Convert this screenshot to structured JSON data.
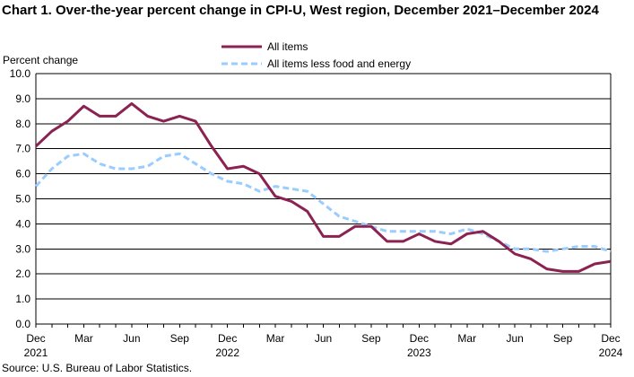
{
  "title": "Chart 1. Over-the-year percent change in CPI-U, West region, December 2021–December 2024",
  "source": "Source: U.S. Bureau of Labor Statistics.",
  "colors": {
    "all_items": "#8B2252",
    "core": "#99CCFF",
    "grid": "#000000",
    "axis": "#000000"
  },
  "chart_data": {
    "type": "line",
    "ylabel": "Percent change",
    "ylim": [
      0,
      10
    ],
    "yticks": [
      "0.0",
      "1.0",
      "2.0",
      "3.0",
      "4.0",
      "5.0",
      "6.0",
      "7.0",
      "8.0",
      "9.0",
      "10.0"
    ],
    "x": [
      "Dec 2021",
      "Jan 2022",
      "Feb 2022",
      "Mar 2022",
      "Apr 2022",
      "May 2022",
      "Jun 2022",
      "Jul 2022",
      "Aug 2022",
      "Sep 2022",
      "Oct 2022",
      "Nov 2022",
      "Dec 2022",
      "Jan 2023",
      "Feb 2023",
      "Mar 2023",
      "Apr 2023",
      "May 2023",
      "Jun 2023",
      "Jul 2023",
      "Aug 2023",
      "Sep 2023",
      "Oct 2023",
      "Nov 2023",
      "Dec 2023",
      "Jan 2024",
      "Feb 2024",
      "Mar 2024",
      "Apr 2024",
      "May 2024",
      "Jun 2024",
      "Jul 2024",
      "Aug 2024",
      "Sep 2024",
      "Oct 2024",
      "Nov 2024",
      "Dec 2024"
    ],
    "xtick_labels": [
      {
        "index": 0,
        "line1": "Dec",
        "line2": "2021"
      },
      {
        "index": 3,
        "line1": "Mar",
        "line2": ""
      },
      {
        "index": 6,
        "line1": "Jun",
        "line2": ""
      },
      {
        "index": 9,
        "line1": "Sep",
        "line2": ""
      },
      {
        "index": 12,
        "line1": "Dec",
        "line2": "2022"
      },
      {
        "index": 15,
        "line1": "Mar",
        "line2": ""
      },
      {
        "index": 18,
        "line1": "Jun",
        "line2": ""
      },
      {
        "index": 21,
        "line1": "Sep",
        "line2": ""
      },
      {
        "index": 24,
        "line1": "Dec",
        "line2": "2023"
      },
      {
        "index": 27,
        "line1": "Mar",
        "line2": ""
      },
      {
        "index": 30,
        "line1": "Jun",
        "line2": ""
      },
      {
        "index": 33,
        "line1": "Sep",
        "line2": ""
      },
      {
        "index": 36,
        "line1": "Dec",
        "line2": "2024"
      }
    ],
    "legend_position": "top",
    "series": [
      {
        "name": "All items",
        "style": "solid",
        "values": [
          7.1,
          7.7,
          8.1,
          8.7,
          8.3,
          8.3,
          8.8,
          8.3,
          8.1,
          8.3,
          8.1,
          7.1,
          6.2,
          6.3,
          6.0,
          5.1,
          4.9,
          4.5,
          3.5,
          3.5,
          3.9,
          3.9,
          3.3,
          3.3,
          3.6,
          3.3,
          3.2,
          3.6,
          3.7,
          3.3,
          2.8,
          2.6,
          2.2,
          2.1,
          2.1,
          2.4,
          2.5
        ]
      },
      {
        "name": "All items less food and energy",
        "style": "dashed",
        "values": [
          5.5,
          6.2,
          6.7,
          6.8,
          6.4,
          6.2,
          6.2,
          6.3,
          6.7,
          6.8,
          6.4,
          6.0,
          5.7,
          5.6,
          5.3,
          5.5,
          5.4,
          5.3,
          4.8,
          4.3,
          4.1,
          3.9,
          3.7,
          3.7,
          3.7,
          3.7,
          3.6,
          3.8,
          3.6,
          3.3,
          3.0,
          3.0,
          2.9,
          3.0,
          3.1,
          3.1,
          2.9
        ]
      }
    ]
  }
}
